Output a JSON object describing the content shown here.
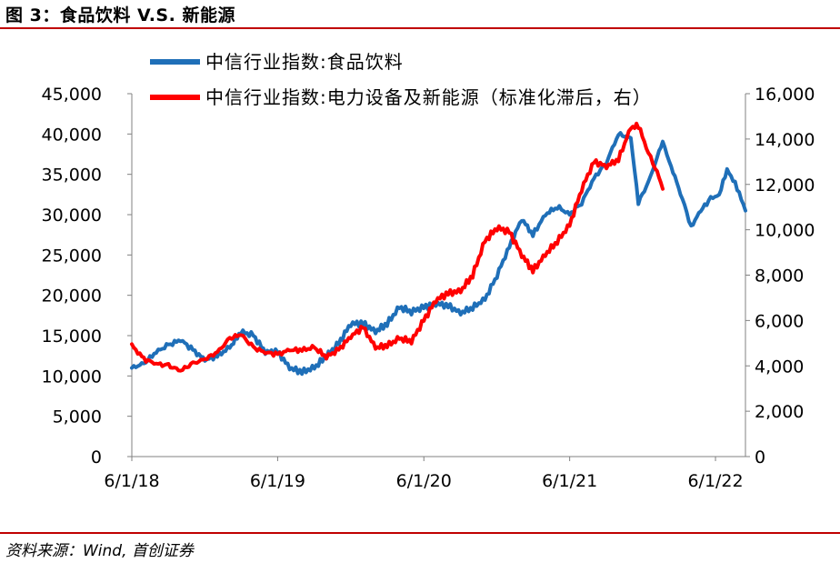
{
  "header": {
    "title": "图 3：食品饮料 V.S. 新能源"
  },
  "footer": {
    "source": "资料来源：Wind, 首创证券"
  },
  "colors": {
    "food": "#1f6fb8",
    "newenergy": "#ff0000",
    "rule": "#c00000"
  },
  "chart_data": {
    "type": "line",
    "title": "图 3：食品饮料 V.S. 新能源",
    "legend_position": "top",
    "x_ticks": [
      "6/1/18",
      "6/1/19",
      "6/1/20",
      "6/1/21",
      "6/1/22"
    ],
    "x_range": [
      "2018-06-01",
      "2022-08-15"
    ],
    "y_left": {
      "range": [
        0,
        45000
      ],
      "ticks": [
        "0",
        "5,000",
        "10,000",
        "15,000",
        "20,000",
        "25,000",
        "30,000",
        "35,000",
        "40,000",
        "45,000"
      ]
    },
    "y_right": {
      "range": [
        0,
        16000
      ],
      "ticks": [
        "0",
        "2,000",
        "4,000",
        "6,000",
        "8,000",
        "10,000",
        "12,000",
        "14,000",
        "16,000"
      ]
    },
    "series": [
      {
        "name": "中信行业指数:食品饮料",
        "axis": "left",
        "points": [
          [
            "2018-06-01",
            11000
          ],
          [
            "2018-07-01",
            11500
          ],
          [
            "2018-08-01",
            13000
          ],
          [
            "2018-09-01",
            13800
          ],
          [
            "2018-10-01",
            14500
          ],
          [
            "2018-11-01",
            13200
          ],
          [
            "2018-12-01",
            12000
          ],
          [
            "2019-01-01",
            12500
          ],
          [
            "2019-02-01",
            13500
          ],
          [
            "2019-03-01",
            15500
          ],
          [
            "2019-04-01",
            15000
          ],
          [
            "2019-05-01",
            13000
          ],
          [
            "2019-06-01",
            13000
          ],
          [
            "2019-07-01",
            11000
          ],
          [
            "2019-08-01",
            10500
          ],
          [
            "2019-09-01",
            11000
          ],
          [
            "2019-10-01",
            12500
          ],
          [
            "2019-11-01",
            14000
          ],
          [
            "2019-12-01",
            16500
          ],
          [
            "2020-01-01",
            16500
          ],
          [
            "2020-02-01",
            15500
          ],
          [
            "2020-03-01",
            16500
          ],
          [
            "2020-04-01",
            18500
          ],
          [
            "2020-05-01",
            18000
          ],
          [
            "2020-06-01",
            18500
          ],
          [
            "2020-07-01",
            19000
          ],
          [
            "2020-08-01",
            18700
          ],
          [
            "2020-09-01",
            17800
          ],
          [
            "2020-10-01",
            18500
          ],
          [
            "2020-11-01",
            19500
          ],
          [
            "2020-12-01",
            22500
          ],
          [
            "2021-01-01",
            26000
          ],
          [
            "2021-02-01",
            29500
          ],
          [
            "2021-03-01",
            27500
          ],
          [
            "2021-04-01",
            30000
          ],
          [
            "2021-05-01",
            31000
          ],
          [
            "2021-06-01",
            30000
          ],
          [
            "2021-07-01",
            31500
          ],
          [
            "2021-08-01",
            34500
          ],
          [
            "2021-09-01",
            36500
          ],
          [
            "2021-10-01",
            40000
          ],
          [
            "2021-11-01",
            39500
          ],
          [
            "2021-11-20",
            31500
          ],
          [
            "2021-12-15",
            34000
          ],
          [
            "2022-01-01",
            36500
          ],
          [
            "2022-01-20",
            39000
          ],
          [
            "2022-02-10",
            36000
          ],
          [
            "2022-03-10",
            32000
          ],
          [
            "2022-04-01",
            28500
          ],
          [
            "2022-04-25",
            30500
          ],
          [
            "2022-05-20",
            32000
          ],
          [
            "2022-06-10",
            32500
          ],
          [
            "2022-06-30",
            35500
          ],
          [
            "2022-07-20",
            34000
          ],
          [
            "2022-08-15",
            30500
          ]
        ]
      },
      {
        "name": "中信行业指数:电力设备及新能源（标准化滞后，右）",
        "axis": "right",
        "points": [
          [
            "2018-06-01",
            4900
          ],
          [
            "2018-07-01",
            4300
          ],
          [
            "2018-08-01",
            4100
          ],
          [
            "2018-09-01",
            4000
          ],
          [
            "2018-10-01",
            3800
          ],
          [
            "2018-11-01",
            4100
          ],
          [
            "2018-12-01",
            4300
          ],
          [
            "2019-01-01",
            4600
          ],
          [
            "2019-02-01",
            5200
          ],
          [
            "2019-03-01",
            5400
          ],
          [
            "2019-04-01",
            4800
          ],
          [
            "2019-05-01",
            4600
          ],
          [
            "2019-06-01",
            4500
          ],
          [
            "2019-07-01",
            4700
          ],
          [
            "2019-08-01",
            4700
          ],
          [
            "2019-09-01",
            4800
          ],
          [
            "2019-10-01",
            4400
          ],
          [
            "2019-11-01",
            4700
          ],
          [
            "2019-12-01",
            5300
          ],
          [
            "2020-01-01",
            5700
          ],
          [
            "2020-02-01",
            4800
          ],
          [
            "2020-03-01",
            4900
          ],
          [
            "2020-04-01",
            5200
          ],
          [
            "2020-05-01",
            5100
          ],
          [
            "2020-06-01",
            6000
          ],
          [
            "2020-07-01",
            6900
          ],
          [
            "2020-08-01",
            7200
          ],
          [
            "2020-09-01",
            7300
          ],
          [
            "2020-10-01",
            8000
          ],
          [
            "2020-11-01",
            9500
          ],
          [
            "2020-12-01",
            10100
          ],
          [
            "2021-01-01",
            9900
          ],
          [
            "2021-02-01",
            8900
          ],
          [
            "2021-03-01",
            8200
          ],
          [
            "2021-04-01",
            8900
          ],
          [
            "2021-05-01",
            9500
          ],
          [
            "2021-06-01",
            10200
          ],
          [
            "2021-07-01",
            11800
          ],
          [
            "2021-08-01",
            13000
          ],
          [
            "2021-09-01",
            12800
          ],
          [
            "2021-10-01",
            13100
          ],
          [
            "2021-11-01",
            14500
          ],
          [
            "2021-11-20",
            14600
          ],
          [
            "2021-12-15",
            13400
          ],
          [
            "2022-01-01",
            12800
          ],
          [
            "2022-01-20",
            11800
          ]
        ]
      }
    ]
  }
}
